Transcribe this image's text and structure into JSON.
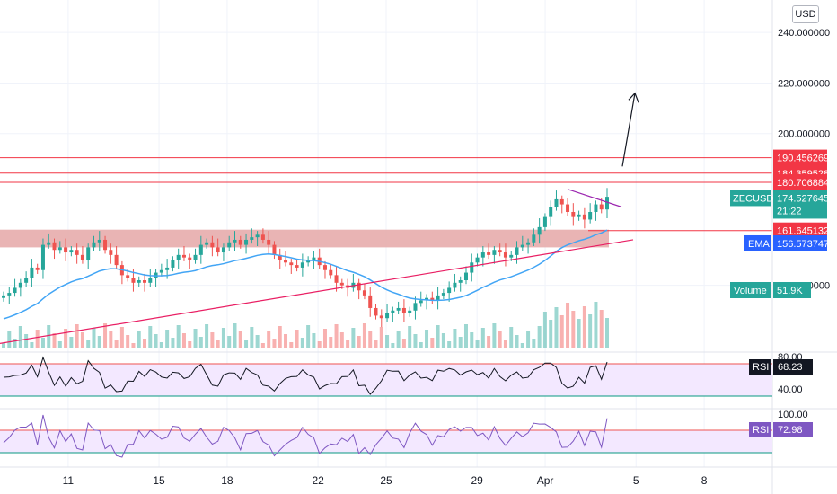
{
  "currency": "USD",
  "symbol": "ZECUSD",
  "countdown": "21:22",
  "price_axis": {
    "ticks": [
      {
        "value": 240,
        "label": "240.000000"
      },
      {
        "value": 220,
        "label": "220.000000"
      },
      {
        "value": 200,
        "label": "200.000000"
      },
      {
        "value": 140,
        "label": "140.000000"
      }
    ],
    "range": [
      115,
      250
    ]
  },
  "time_axis": {
    "labels": [
      {
        "day": 11,
        "label": "11"
      },
      {
        "day": 15,
        "label": "15"
      },
      {
        "day": 18,
        "label": "18"
      },
      {
        "day": 22,
        "label": "22"
      },
      {
        "day": 25,
        "label": "25"
      },
      {
        "day": 29,
        "label": "29"
      },
      {
        "day": 32,
        "label": "Apr"
      },
      {
        "day": 36,
        "label": "5"
      },
      {
        "day": 39,
        "label": "8"
      }
    ],
    "range": [
      8,
      42
    ]
  },
  "price_badges": [
    {
      "label": "190.456269",
      "value": 190.456269,
      "color": "#f23645"
    },
    {
      "label": "184.359528",
      "value": 184.359528,
      "color": "#f23645"
    },
    {
      "label": "180.706884",
      "value": 180.706884,
      "color": "#f23645"
    },
    {
      "label": "161.645132",
      "value": 161.645132,
      "color": "#f23645"
    },
    {
      "label": "174.527645",
      "value": 174.527645,
      "color": "#26a69a"
    }
  ],
  "ema": {
    "label": "EMA",
    "value": "156.573747",
    "color": "#2962ff"
  },
  "volume": {
    "label": "Volume",
    "value": "51.9K",
    "color": "#26a69a"
  },
  "rsi1": {
    "label": "RSI",
    "value": "68.23",
    "ticks": [
      "80.00",
      "40.00"
    ],
    "color": "#131722"
  },
  "rsi2": {
    "label": "RSI",
    "value": "72.98",
    "ticks": [
      "100.00"
    ],
    "color": "#7e57c2"
  },
  "colors": {
    "up": "#26a69a",
    "down": "#ef5350",
    "ema_line": "#42a5f5",
    "support_zone": "#e5a7a7",
    "trendline": "#e91e63",
    "rsi_fill": "#f3e8ff",
    "level_lines": "#f23645"
  },
  "chart_data": {
    "type": "candlestick",
    "symbol": "ZECUSD",
    "price_range": [
      115,
      250
    ],
    "horizontal_levels": [
      190.456269,
      184.359528,
      180.706884,
      161.645132
    ],
    "support_zone": [
      155,
      162
    ],
    "last_price": 174.527645,
    "ema_last": 156.573747,
    "volume_last": "51.9K",
    "rsi_last": 68.23,
    "rsi2_last": 72.98,
    "candles_close": [
      136,
      137,
      139,
      141,
      143,
      147,
      146,
      156,
      157,
      154,
      155,
      153,
      154,
      152,
      150,
      155,
      157,
      158,
      154,
      152,
      148,
      144,
      143,
      141,
      142,
      141,
      143,
      145,
      146,
      147,
      150,
      152,
      151,
      150,
      152,
      156,
      157,
      155,
      153,
      155,
      157,
      158,
      156,
      158,
      159,
      160,
      158,
      156,
      152,
      150,
      149,
      148,
      147,
      149,
      150,
      151,
      148,
      146,
      144,
      141,
      140,
      139,
      141,
      138,
      136,
      131,
      128,
      127,
      129,
      130,
      131,
      129,
      130,
      133,
      134,
      135,
      134,
      136,
      137,
      139,
      141,
      142,
      145,
      149,
      151,
      153,
      152,
      154,
      153,
      151,
      152,
      155,
      156,
      157,
      160,
      163,
      167,
      171,
      174,
      172,
      169,
      167,
      168,
      166,
      169,
      172,
      170,
      175
    ]
  }
}
